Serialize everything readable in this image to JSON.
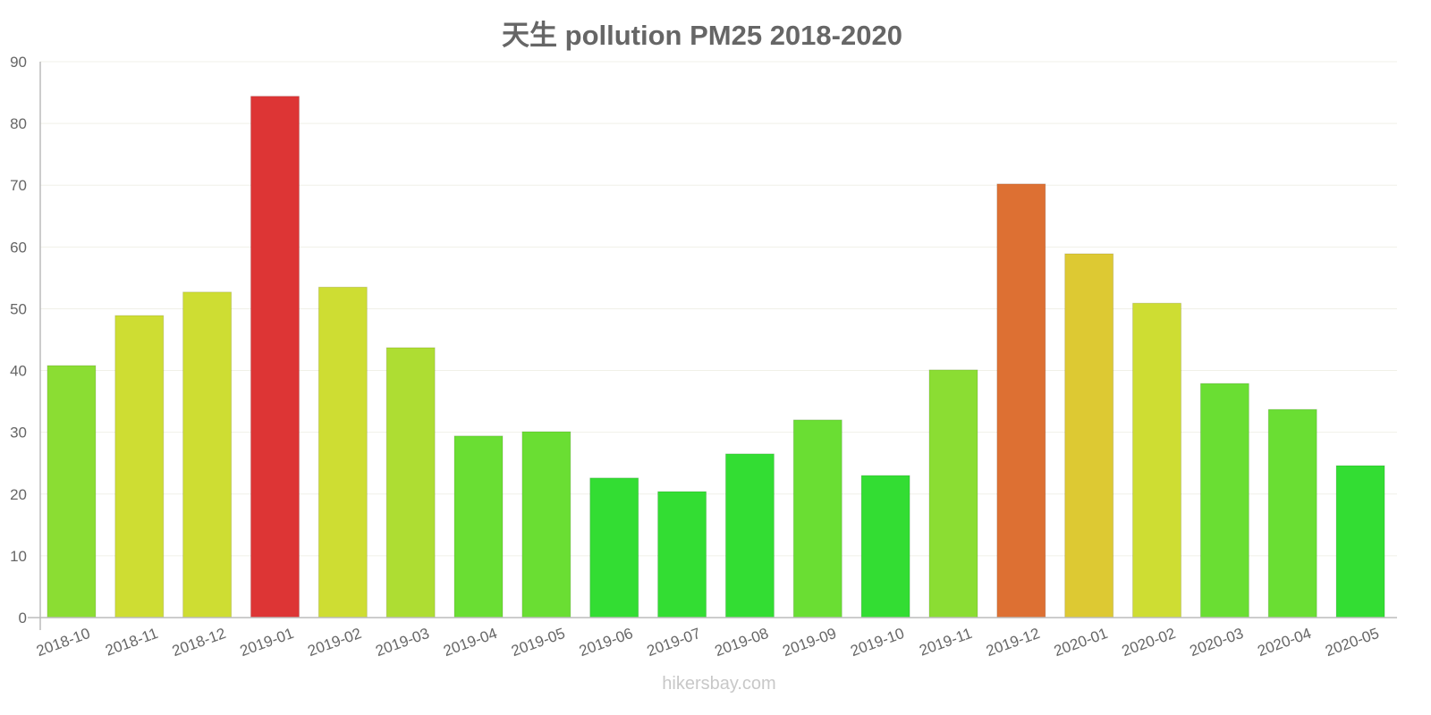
{
  "chart_data": {
    "type": "bar",
    "title": "天生 pollution PM25 2018-2020",
    "xlabel": "",
    "ylabel": "",
    "ylim": [
      0,
      90
    ],
    "yticks": [
      0,
      10,
      20,
      30,
      40,
      50,
      60,
      70,
      80,
      90
    ],
    "grid": true,
    "categories": [
      "2018-10",
      "2018-11",
      "2018-12",
      "2019-01",
      "2019-02",
      "2019-03",
      "2019-04",
      "2019-05",
      "2019-06",
      "2019-07",
      "2019-08",
      "2019-09",
      "2019-10",
      "2019-11",
      "2019-12",
      "2020-01",
      "2020-02",
      "2020-03",
      "2020-04",
      "2020-05"
    ],
    "values": [
      40.8,
      48.9,
      52.7,
      84.4,
      53.5,
      43.7,
      29.4,
      30.1,
      22.6,
      20.4,
      26.5,
      32.0,
      23.0,
      40.1,
      70.2,
      58.9,
      50.9,
      37.9,
      33.7,
      24.6
    ],
    "colors": [
      "#8bdd33",
      "#cedd33",
      "#cedd33",
      "#dd3535",
      "#cedd33",
      "#aedd33",
      "#6ade33",
      "#6ade33",
      "#33dd33",
      "#33dd33",
      "#33dd33",
      "#6ade33",
      "#33dd33",
      "#8bdd33",
      "#dd7033",
      "#ddc933",
      "#cedd33",
      "#6ade33",
      "#6ade33",
      "#33dd33"
    ]
  },
  "watermark": "hikersbay.com"
}
